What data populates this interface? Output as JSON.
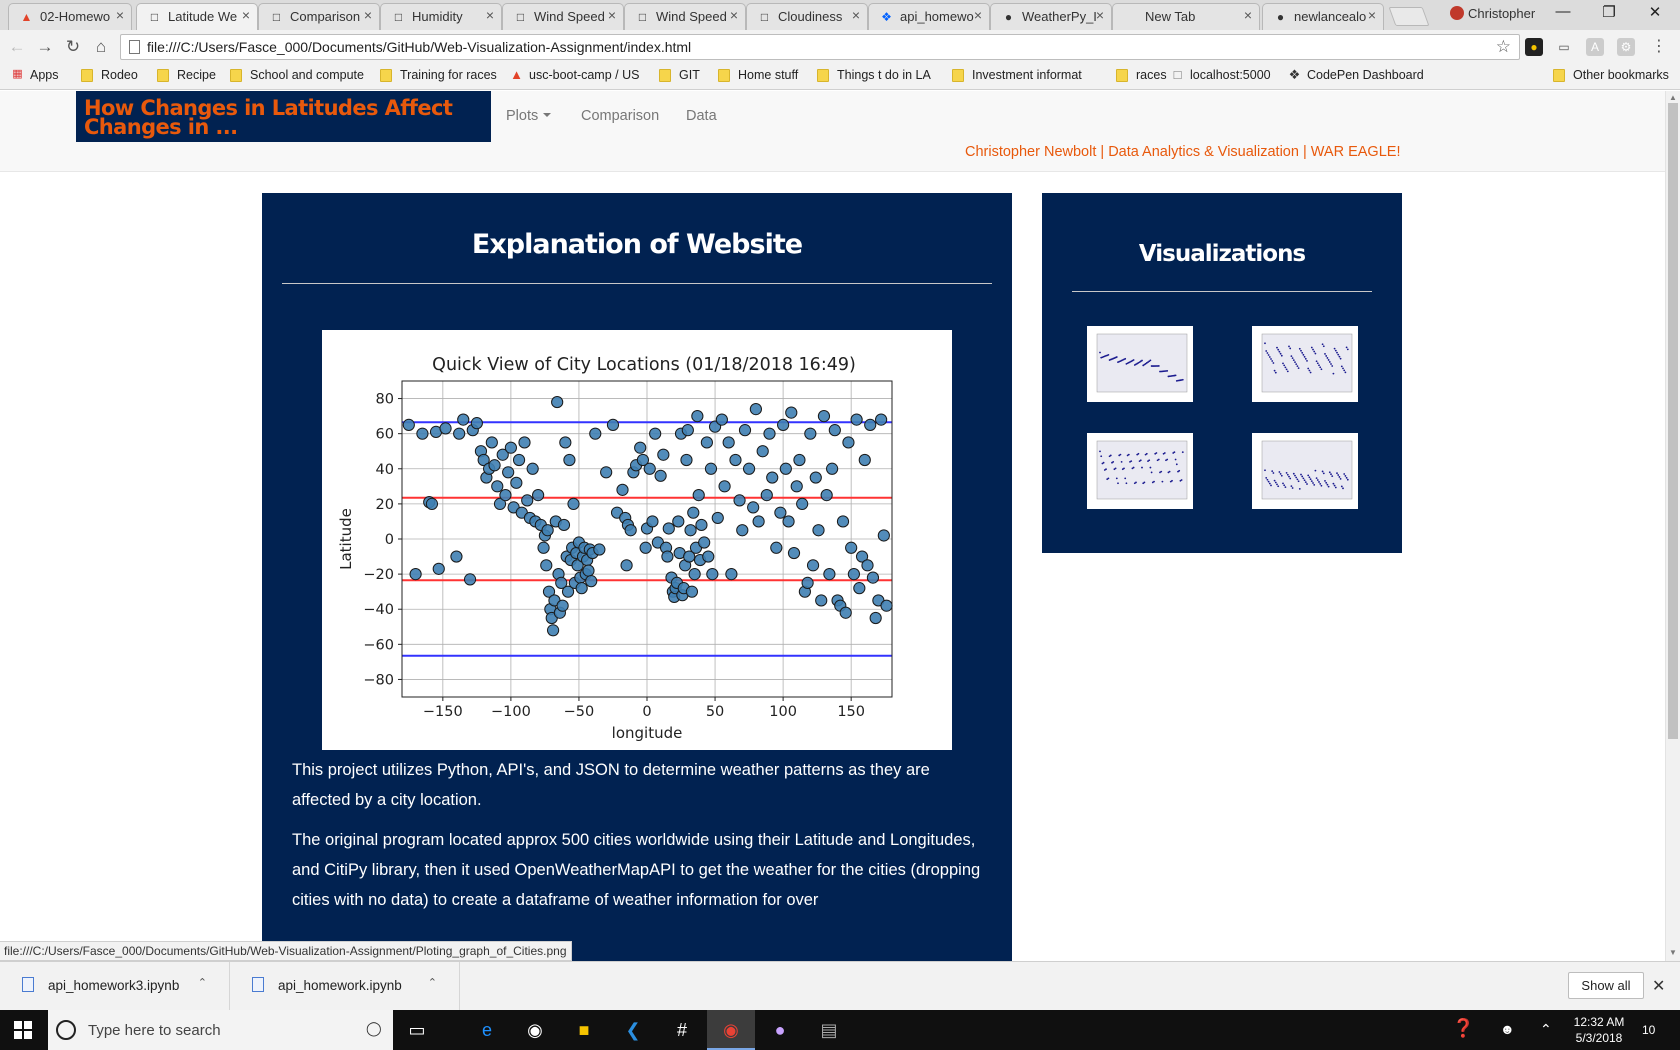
{
  "browser": {
    "tabs": [
      {
        "label": "02-Homewo",
        "icon": "gitlab-icon"
      },
      {
        "label": "Latitude We",
        "icon": "page-icon",
        "active": true
      },
      {
        "label": "Comparison",
        "icon": "page-icon"
      },
      {
        "label": "Humidity",
        "icon": "page-icon"
      },
      {
        "label": "Wind Speed",
        "icon": "page-icon"
      },
      {
        "label": "Wind Speed",
        "icon": "page-icon"
      },
      {
        "label": "Cloudiness",
        "icon": "page-icon"
      },
      {
        "label": "api_homewo",
        "icon": "dropbox-icon"
      },
      {
        "label": "WeatherPy_I",
        "icon": "github-icon"
      },
      {
        "label": "New Tab",
        "icon": "none"
      },
      {
        "label": "newlancealo",
        "icon": "github-icon"
      }
    ],
    "profile_name": "Christopher",
    "address": "file:///C:/Users/Fasce_000/Documents/GitHub/Web-Visualization-Assignment/index.html",
    "bookmarks": [
      {
        "label": "Apps",
        "icon": "apps-icon"
      },
      {
        "label": "Rodeo",
        "icon": "folder-icon"
      },
      {
        "label": "Recipe",
        "icon": "folder-icon"
      },
      {
        "label": "School and compute",
        "icon": "folder-icon"
      },
      {
        "label": "Training for races",
        "icon": "folder-icon"
      },
      {
        "label": "usc-boot-camp / US",
        "icon": "gitlab-icon"
      },
      {
        "label": "GIT",
        "icon": "folder-icon"
      },
      {
        "label": "Home stuff",
        "icon": "folder-icon"
      },
      {
        "label": "Things t do in LA",
        "icon": "folder-icon"
      },
      {
        "label": "Investment informat",
        "icon": "folder-icon"
      },
      {
        "label": "races",
        "icon": "folder-icon"
      },
      {
        "label": "localhost:5000",
        "icon": "page-icon"
      },
      {
        "label": "CodePen Dashboard",
        "icon": "codepen-icon"
      },
      {
        "label": "Other bookmarks",
        "icon": "folder-icon"
      }
    ],
    "status_url": "file:///C:/Users/Fasce_000/Documents/GitHub/Web-Visualization-Assignment/Ploting_graph_of_Cities.png"
  },
  "site": {
    "brand": "How Changes in Latitudes Affect Changes in ...",
    "nav": {
      "plots": "Plots",
      "comparison": "Comparison",
      "data": "Data"
    },
    "tagline": "Christopher Newbolt | Data Analytics & Visualization | WAR EAGLE!",
    "main_title": "Explanation of Website",
    "side_title": "Visualizations",
    "paragraphs": [
      "This project utilizes Python, API's, and JSON to determine weather patterns as they are affected by a city location.",
      "The original program located approx 500 cities worldwide using their Latitude and Longitudes, and CitiPy library, then it used OpenWeatherMapAPI to get the weather for the cities (dropping cities with no data) to create a dataframe of weather information for over"
    ],
    "colors": {
      "navy": "#012251",
      "orange": "#e8590c"
    }
  },
  "chart_data": {
    "type": "scatter",
    "title": "Quick View of City Locations (01/18/2018 16:49)",
    "xlabel": "longitude",
    "ylabel": "Latitude",
    "xlim": [
      -180,
      180
    ],
    "ylim": [
      -90,
      90
    ],
    "xticks": [
      -150,
      -100,
      -50,
      0,
      50,
      100,
      150
    ],
    "yticks": [
      -80,
      -60,
      -40,
      -20,
      0,
      20,
      40,
      60,
      80
    ],
    "grid": true,
    "reference_lines": [
      {
        "y": 66.5,
        "color": "#3333ff"
      },
      {
        "y": 23.5,
        "color": "#ff3333"
      },
      {
        "y": -23.5,
        "color": "#ff3333"
      },
      {
        "y": -66.5,
        "color": "#3333ff"
      }
    ],
    "point_color": "#3f7fb3",
    "points": [
      [
        -175,
        65
      ],
      [
        -170,
        -20
      ],
      [
        -165,
        60
      ],
      [
        -160,
        21
      ],
      [
        -158,
        20
      ],
      [
        -155,
        61
      ],
      [
        -153,
        -17
      ],
      [
        -148,
        63
      ],
      [
        -140,
        -10
      ],
      [
        -138,
        60
      ],
      [
        -135,
        68
      ],
      [
        -130,
        -23
      ],
      [
        -128,
        62
      ],
      [
        -125,
        66
      ],
      [
        -122,
        50
      ],
      [
        -120,
        45
      ],
      [
        -118,
        35
      ],
      [
        -116,
        40
      ],
      [
        -114,
        55
      ],
      [
        -112,
        42
      ],
      [
        -110,
        30
      ],
      [
        -108,
        20
      ],
      [
        -106,
        48
      ],
      [
        -104,
        25
      ],
      [
        -102,
        38
      ],
      [
        -100,
        52
      ],
      [
        -98,
        18
      ],
      [
        -96,
        32
      ],
      [
        -94,
        45
      ],
      [
        -92,
        15
      ],
      [
        -90,
        55
      ],
      [
        -88,
        22
      ],
      [
        -86,
        12
      ],
      [
        -84,
        40
      ],
      [
        -82,
        10
      ],
      [
        -80,
        25
      ],
      [
        -78,
        8
      ],
      [
        -76,
        -5
      ],
      [
        -75,
        2
      ],
      [
        -74,
        -15
      ],
      [
        -73,
        5
      ],
      [
        -72,
        -30
      ],
      [
        -71,
        -40
      ],
      [
        -70,
        -45
      ],
      [
        -69,
        -52
      ],
      [
        -68,
        -35
      ],
      [
        -67,
        10
      ],
      [
        -66,
        78
      ],
      [
        -65,
        -20
      ],
      [
        -64,
        -42
      ],
      [
        -63,
        -25
      ],
      [
        -62,
        -38
      ],
      [
        -61,
        8
      ],
      [
        -60,
        55
      ],
      [
        -59,
        -10
      ],
      [
        -58,
        -30
      ],
      [
        -57,
        45
      ],
      [
        -56,
        -12
      ],
      [
        -55,
        -5
      ],
      [
        -54,
        20
      ],
      [
        -53,
        -25
      ],
      [
        -52,
        -8
      ],
      [
        -51,
        -15
      ],
      [
        -50,
        -2
      ],
      [
        -49,
        -22
      ],
      [
        -48,
        -28
      ],
      [
        -47,
        -10
      ],
      [
        -46,
        -5
      ],
      [
        -45,
        -20
      ],
      [
        -44,
        -12
      ],
      [
        -43,
        -18
      ],
      [
        -42,
        -6
      ],
      [
        -41,
        -24
      ],
      [
        -40,
        -8
      ],
      [
        -38,
        60
      ],
      [
        -35,
        -6
      ],
      [
        -30,
        38
      ],
      [
        -25,
        65
      ],
      [
        -22,
        15
      ],
      [
        -18,
        28
      ],
      [
        -16,
        12
      ],
      [
        -15,
        -15
      ],
      [
        -14,
        8
      ],
      [
        -12,
        5
      ],
      [
        -10,
        38
      ],
      [
        -8,
        42
      ],
      [
        -5,
        52
      ],
      [
        -3,
        45
      ],
      [
        -1,
        -5
      ],
      [
        0,
        6
      ],
      [
        2,
        40
      ],
      [
        4,
        10
      ],
      [
        6,
        60
      ],
      [
        8,
        -2
      ],
      [
        10,
        36
      ],
      [
        12,
        48
      ],
      [
        14,
        -5
      ],
      [
        15,
        -10
      ],
      [
        16,
        6
      ],
      [
        18,
        -22
      ],
      [
        19,
        -30
      ],
      [
        20,
        -33
      ],
      [
        21,
        -28
      ],
      [
        22,
        -25
      ],
      [
        23,
        10
      ],
      [
        24,
        -8
      ],
      [
        25,
        60
      ],
      [
        26,
        -32
      ],
      [
        27,
        -28
      ],
      [
        28,
        -15
      ],
      [
        29,
        45
      ],
      [
        30,
        62
      ],
      [
        31,
        -10
      ],
      [
        32,
        5
      ],
      [
        33,
        -30
      ],
      [
        34,
        15
      ],
      [
        35,
        -20
      ],
      [
        36,
        -5
      ],
      [
        37,
        70
      ],
      [
        38,
        25
      ],
      [
        39,
        -12
      ],
      [
        40,
        8
      ],
      [
        42,
        -2
      ],
      [
        44,
        55
      ],
      [
        45,
        -10
      ],
      [
        47,
        40
      ],
      [
        48,
        -20
      ],
      [
        50,
        64
      ],
      [
        52,
        12
      ],
      [
        55,
        68
      ],
      [
        57,
        30
      ],
      [
        60,
        55
      ],
      [
        62,
        -20
      ],
      [
        65,
        45
      ],
      [
        68,
        22
      ],
      [
        70,
        5
      ],
      [
        72,
        62
      ],
      [
        75,
        40
      ],
      [
        78,
        18
      ],
      [
        80,
        74
      ],
      [
        82,
        10
      ],
      [
        85,
        50
      ],
      [
        88,
        25
      ],
      [
        90,
        60
      ],
      [
        92,
        35
      ],
      [
        95,
        -5
      ],
      [
        98,
        15
      ],
      [
        100,
        65
      ],
      [
        102,
        40
      ],
      [
        104,
        10
      ],
      [
        106,
        72
      ],
      [
        108,
        -8
      ],
      [
        110,
        30
      ],
      [
        112,
        45
      ],
      [
        114,
        20
      ],
      [
        116,
        -30
      ],
      [
        118,
        -25
      ],
      [
        120,
        60
      ],
      [
        122,
        -15
      ],
      [
        124,
        35
      ],
      [
        126,
        5
      ],
      [
        128,
        -35
      ],
      [
        130,
        70
      ],
      [
        132,
        25
      ],
      [
        134,
        -20
      ],
      [
        136,
        40
      ],
      [
        138,
        62
      ],
      [
        140,
        -35
      ],
      [
        142,
        -38
      ],
      [
        144,
        10
      ],
      [
        146,
        -42
      ],
      [
        148,
        55
      ],
      [
        150,
        -5
      ],
      [
        152,
        -20
      ],
      [
        154,
        68
      ],
      [
        156,
        -28
      ],
      [
        158,
        -10
      ],
      [
        160,
        45
      ],
      [
        162,
        -15
      ],
      [
        164,
        65
      ],
      [
        166,
        -22
      ],
      [
        168,
        -45
      ],
      [
        170,
        -35
      ],
      [
        172,
        68
      ],
      [
        174,
        2
      ],
      [
        176,
        -38
      ]
    ]
  },
  "downloads": {
    "items": [
      {
        "label": "api_homework3.ipynb"
      },
      {
        "label": "api_homework.ipynb"
      }
    ],
    "show_all": "Show all"
  },
  "taskbar": {
    "search_placeholder": "Type here to search",
    "time": "12:32 AM",
    "date": "5/3/2018",
    "notifications": "10"
  }
}
